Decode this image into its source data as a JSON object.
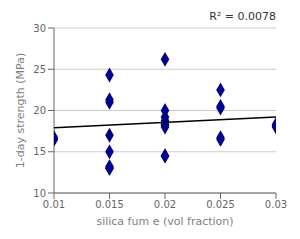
{
  "chart_data": {
    "type": "scatter",
    "xlabel": "silica fum e  (vol fraction)",
    "ylabel": "1-day strength (MPa)",
    "annotation": "R² = 0.0078",
    "xlim": [
      0.01,
      0.03
    ],
    "ylim": [
      10,
      30
    ],
    "xticks": [
      0.01,
      0.015,
      0.02,
      0.025,
      0.03
    ],
    "yticks": [
      10,
      15,
      20,
      25,
      30
    ],
    "grid": "y",
    "series": [
      {
        "type": "scatter",
        "color": "#00008B",
        "marker": "diamond",
        "x": [
          0.01,
          0.01,
          0.015,
          0.015,
          0.015,
          0.015,
          0.015,
          0.015,
          0.015,
          0.015,
          0.02,
          0.02,
          0.02,
          0.02,
          0.02,
          0.02,
          0.02,
          0.02,
          0.02,
          0.02,
          0.025,
          0.025,
          0.025,
          0.025,
          0.025,
          0.03,
          0.03,
          0.03
        ],
        "values": [
          16.7,
          16.5,
          24.3,
          21.3,
          21.0,
          17.0,
          15.0,
          13.2,
          13.0,
          13.0,
          26.2,
          20.0,
          19.2,
          18.8,
          18.5,
          18.3,
          18.2,
          18.0,
          14.5,
          14.5,
          22.5,
          20.5,
          20.3,
          16.7,
          16.5,
          18.3,
          18.2,
          18.0
        ]
      },
      {
        "type": "line",
        "color": "black",
        "x": [
          0.01,
          0.03
        ],
        "values": [
          17.9,
          19.2
        ]
      }
    ]
  }
}
